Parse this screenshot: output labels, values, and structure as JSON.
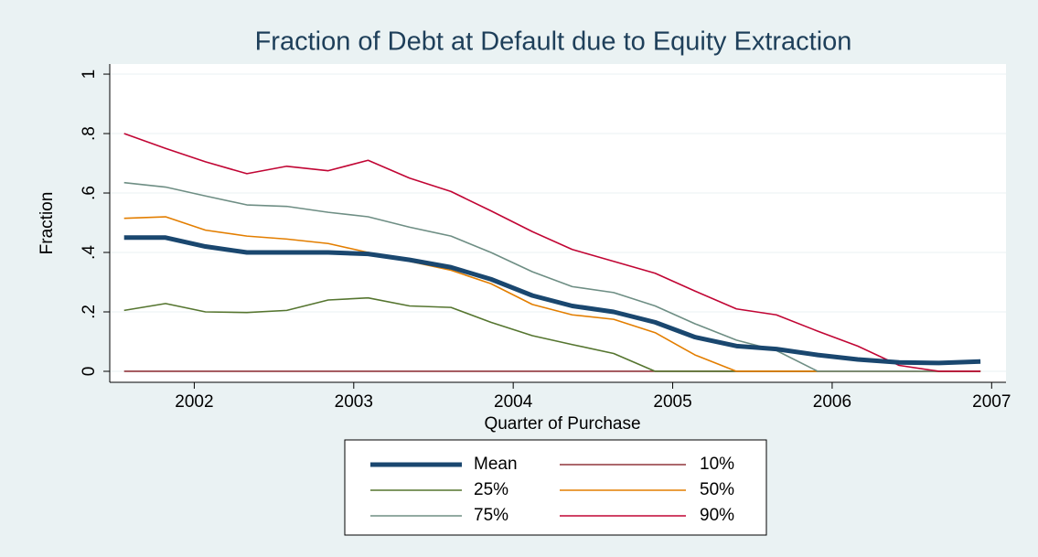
{
  "chart_data": {
    "type": "line",
    "title": "Fraction of Debt at Default due to Equity Extraction",
    "xlabel": "Quarter of Purchase",
    "ylabel": "Fraction",
    "x": [
      2001.56,
      2001.82,
      2002.07,
      2002.33,
      2002.58,
      2002.84,
      2003.09,
      2003.35,
      2003.61,
      2003.86,
      2004.12,
      2004.37,
      2004.63,
      2004.89,
      2005.14,
      2005.4,
      2005.65,
      2005.91,
      2006.16,
      2006.42,
      2006.67,
      2006.93
    ],
    "series": [
      {
        "name": "Mean",
        "color": "#1a476f",
        "values": [
          0.45,
          0.45,
          0.42,
          0.4,
          0.4,
          0.4,
          0.395,
          0.375,
          0.35,
          0.31,
          0.255,
          0.22,
          0.2,
          0.165,
          0.115,
          0.085,
          0.075,
          0.055,
          0.04,
          0.03,
          0.028,
          0.033
        ]
      },
      {
        "name": "10%",
        "color": "#90353b",
        "values": [
          0,
          0,
          0,
          0,
          0,
          0,
          0,
          0,
          0,
          0,
          0,
          0,
          0,
          0,
          0,
          0,
          0,
          0,
          0,
          0,
          0,
          0
        ]
      },
      {
        "name": "25%",
        "color": "#55752f",
        "values": [
          0.205,
          0.228,
          0.2,
          0.198,
          0.205,
          0.24,
          0.247,
          0.22,
          0.215,
          0.165,
          0.12,
          0.09,
          0.06,
          0,
          0,
          0,
          0,
          0,
          0,
          0,
          0,
          0
        ]
      },
      {
        "name": "50%",
        "color": "#e37e00",
        "values": [
          0.515,
          0.52,
          0.475,
          0.455,
          0.445,
          0.43,
          0.4,
          0.37,
          0.34,
          0.295,
          0.225,
          0.19,
          0.175,
          0.13,
          0.055,
          0,
          0,
          0,
          0,
          0,
          0,
          0
        ]
      },
      {
        "name": "75%",
        "color": "#6e8e84",
        "values": [
          0.635,
          0.62,
          0.59,
          0.56,
          0.555,
          0.535,
          0.52,
          0.485,
          0.455,
          0.4,
          0.335,
          0.285,
          0.265,
          0.22,
          0.16,
          0.105,
          0.07,
          0,
          0,
          0,
          0,
          0
        ]
      },
      {
        "name": "90%",
        "color": "#c10534",
        "values": [
          0.8,
          0.75,
          0.705,
          0.665,
          0.69,
          0.675,
          0.71,
          0.65,
          0.605,
          0.54,
          0.47,
          0.41,
          0.37,
          0.33,
          0.27,
          0.21,
          0.19,
          0.135,
          0.085,
          0.02,
          0,
          0
        ]
      }
    ],
    "xlim": [
      2001.47,
      2007.09
    ],
    "xticks": [
      2002,
      2003,
      2004,
      2005,
      2006,
      2007
    ],
    "ylim": [
      -0.037,
      1.034
    ],
    "yticks": [
      0,
      {
        "value": 0.2,
        "label": ".2"
      },
      {
        "value": 0.4,
        "label": ".4"
      },
      {
        "value": 0.6,
        "label": ".6"
      },
      {
        "value": 0.8,
        "label": ".8"
      },
      1
    ],
    "grid": true,
    "legend": "bottom"
  }
}
